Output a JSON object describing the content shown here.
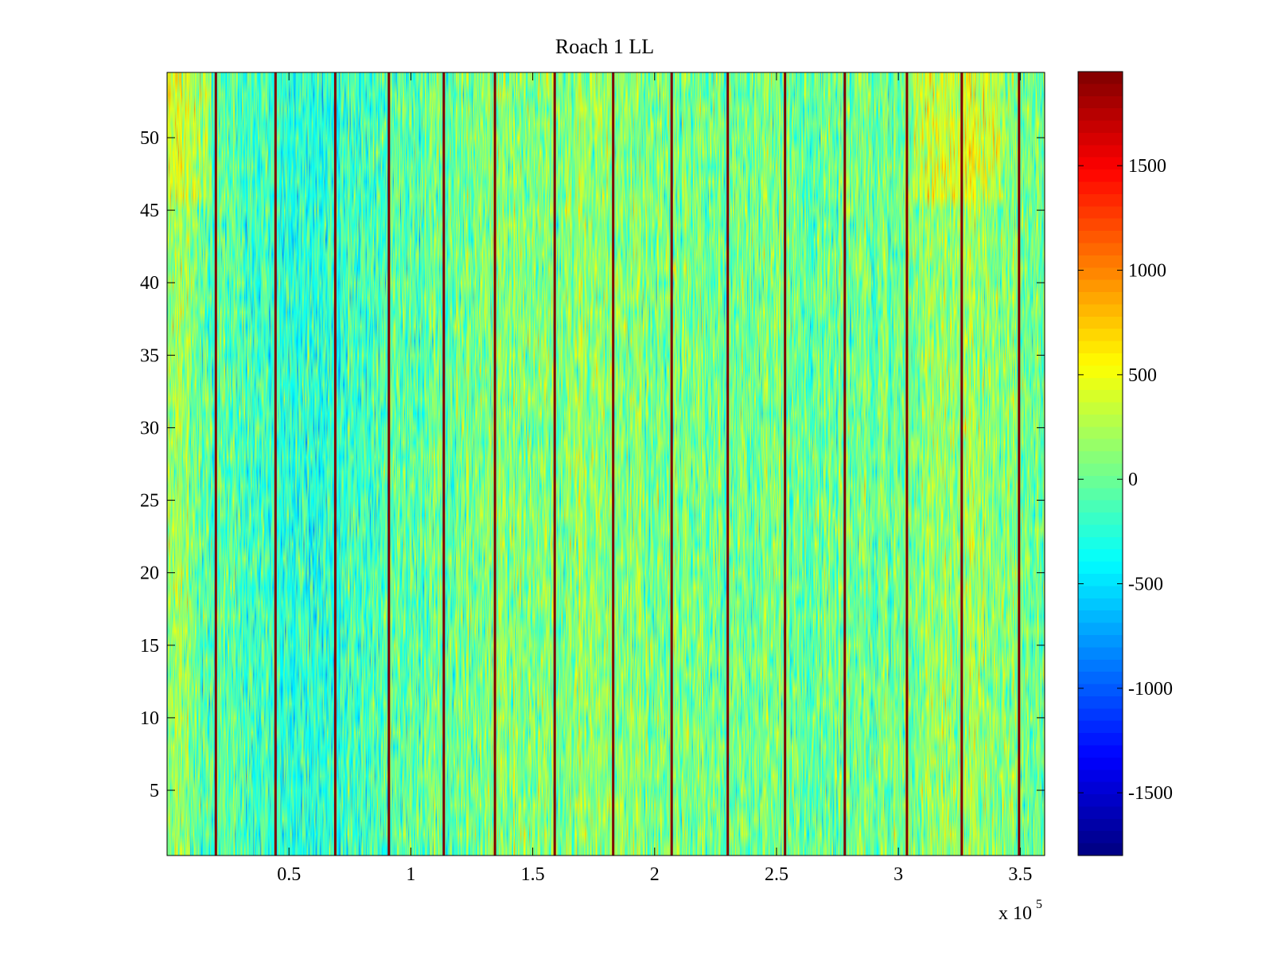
{
  "chart_data": {
    "type": "heatmap",
    "title": "Roach 1 LL",
    "xlabel": "",
    "ylabel": "",
    "x_multiplier_label": "x 10",
    "x_multiplier_exponent": "5",
    "xlim": [
      0,
      3.6
    ],
    "ylim": [
      0.5,
      54.5
    ],
    "x_ticks": [
      0.5,
      1,
      1.5,
      2,
      2.5,
      3,
      3.5
    ],
    "x_tick_labels": [
      "0.5",
      "1",
      "1.5",
      "2",
      "2.5",
      "3",
      "3.5"
    ],
    "y_ticks": [
      5,
      10,
      15,
      20,
      25,
      30,
      35,
      40,
      45,
      50
    ],
    "y_tick_labels": [
      "5",
      "10",
      "15",
      "20",
      "25",
      "30",
      "35",
      "40",
      "45",
      "50"
    ],
    "rows": 54,
    "colorbar": {
      "colormap": "jet",
      "clim": [
        -1800,
        1950
      ],
      "ticks": [
        1500,
        1000,
        500,
        0,
        -500,
        -1000,
        -1500
      ],
      "tick_labels": [
        "1500",
        "1000",
        "500",
        "0",
        "-500",
        "-1000",
        "-1500"
      ]
    },
    "background_level": 0,
    "dark_stripes_x": [
      0.2,
      0.445,
      0.69,
      0.91,
      1.135,
      1.345,
      1.59,
      1.83,
      2.07,
      2.3,
      2.535,
      2.78,
      3.035,
      3.26,
      3.495
    ],
    "stripe_color": "#800000"
  }
}
